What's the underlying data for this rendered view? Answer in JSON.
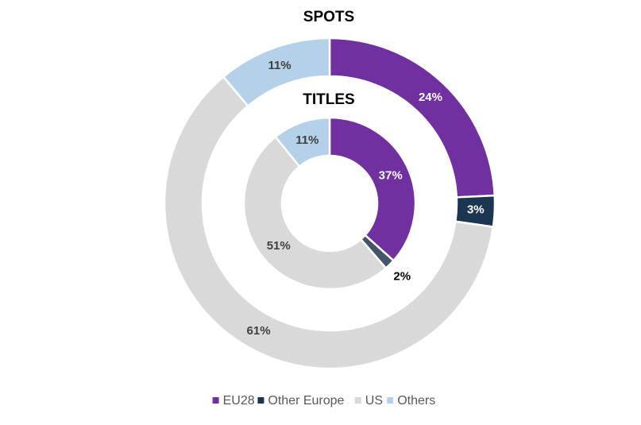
{
  "chart_data": [
    {
      "type": "pie",
      "title": "SPOTS",
      "categories": [
        "EU28",
        "Other Europe",
        "US",
        "Others"
      ],
      "values": [
        24,
        3,
        61,
        11
      ],
      "value_labels": [
        "24%",
        "3%",
        "61%",
        "11%"
      ],
      "colors": [
        "#7030a0",
        "#1b3651",
        "#d9d9d9",
        "#b4d1e9"
      ]
    },
    {
      "type": "pie",
      "title": "TITLES",
      "categories": [
        "EU28",
        "Other Europe",
        "US",
        "Others"
      ],
      "values": [
        37,
        2,
        51,
        11
      ],
      "value_labels": [
        "37%",
        "2%",
        "51%",
        "11%"
      ],
      "colors": [
        "#7030a0",
        "#44546a",
        "#d9d9d9",
        "#b4d1e9"
      ]
    }
  ]
}
